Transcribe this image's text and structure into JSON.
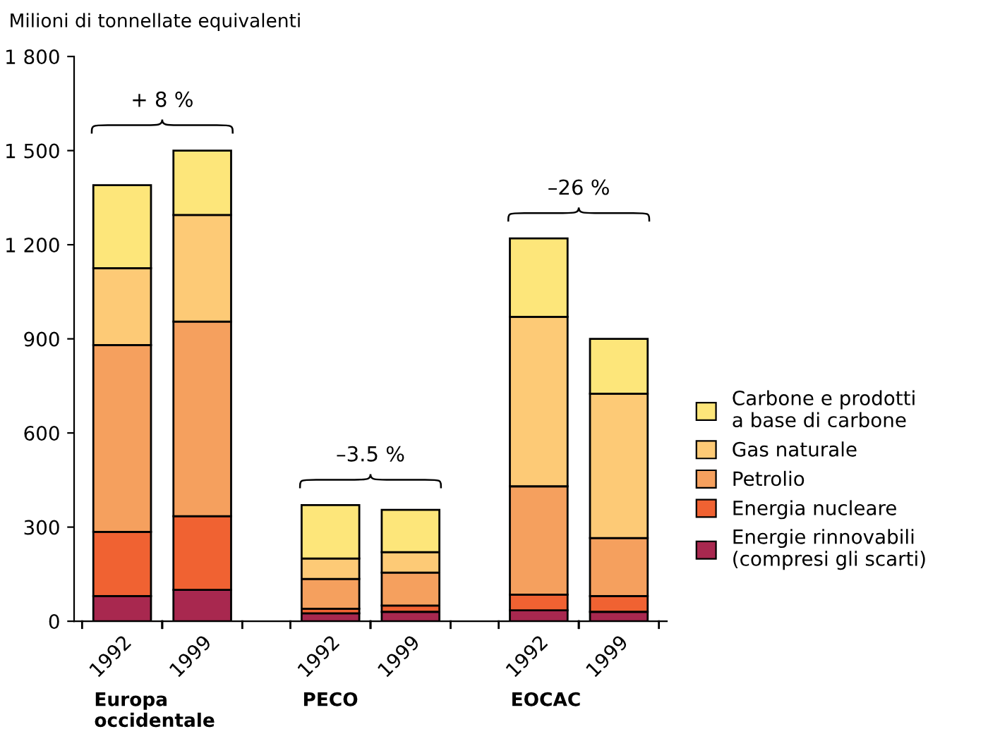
{
  "chart_data": {
    "type": "bar",
    "stacked": true,
    "ylabel": "Milioni di tonnellate equivalenti",
    "categories": [
      "1992",
      "1999",
      "1992",
      "1999",
      "1992",
      "1999"
    ],
    "series": [
      {
        "name": "Energie rinnovabili\n(compresi gli scarti)",
        "color": "#a8284f",
        "values": [
          80,
          100,
          25,
          30,
          35,
          30
        ]
      },
      {
        "name": "Energia nucleare",
        "color": "#f06232",
        "values": [
          205,
          235,
          15,
          20,
          50,
          50
        ]
      },
      {
        "name": "Petrolio",
        "color": "#f5a05e",
        "values": [
          595,
          620,
          95,
          105,
          345,
          185
        ]
      },
      {
        "name": "Gas naturale",
        "color": "#fdca76",
        "values": [
          245,
          340,
          65,
          65,
          540,
          460
        ]
      },
      {
        "name": "Carbone e prodotti\na base di carbone",
        "color": "#fde67a",
        "values": [
          265,
          205,
          170,
          135,
          250,
          175
        ]
      }
    ],
    "ylim": [
      0,
      1800
    ],
    "yticks": [
      0,
      300,
      600,
      900,
      {
        "value": 1200,
        "label": "1 200"
      },
      {
        "value": 1500,
        "label": "1 500"
      },
      {
        "value": 1800,
        "label": "1 800"
      }
    ],
    "annotations": [
      "Europa\noccidentale",
      "PECO",
      "EOCAC",
      "+ 8 %",
      "–3.5 %",
      "–26 %"
    ],
    "legend": "right",
    "grid": false
  }
}
